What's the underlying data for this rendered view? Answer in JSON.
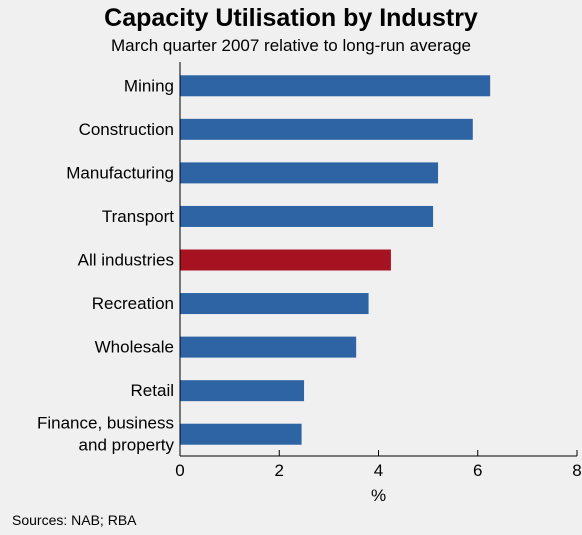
{
  "chart_data": {
    "type": "bar",
    "orientation": "horizontal",
    "title": "Capacity Utilisation by Industry",
    "subtitle": "March quarter 2007 relative to long-run average",
    "xlabel": "%",
    "ylabel": "",
    "xlim": [
      0,
      8
    ],
    "xticks": [
      "0",
      "2",
      "4",
      "6",
      "8"
    ],
    "grid": false,
    "categories": [
      [
        "Mining"
      ],
      [
        "Construction"
      ],
      [
        "Manufacturing"
      ],
      [
        "Transport"
      ],
      [
        "All industries"
      ],
      [
        "Recreation"
      ],
      [
        "Wholesale"
      ],
      [
        "Retail"
      ],
      [
        "Finance, business",
        "and property"
      ]
    ],
    "values": [
      6.25,
      5.9,
      5.2,
      5.1,
      4.25,
      3.8,
      3.55,
      2.5,
      2.45
    ],
    "highlight_index": 4,
    "colors": {
      "bar": "#2e64a3",
      "highlight": "#a6121f",
      "axis": "#000000",
      "background": "#f0f0f0"
    }
  },
  "source": "Sources: NAB; RBA"
}
